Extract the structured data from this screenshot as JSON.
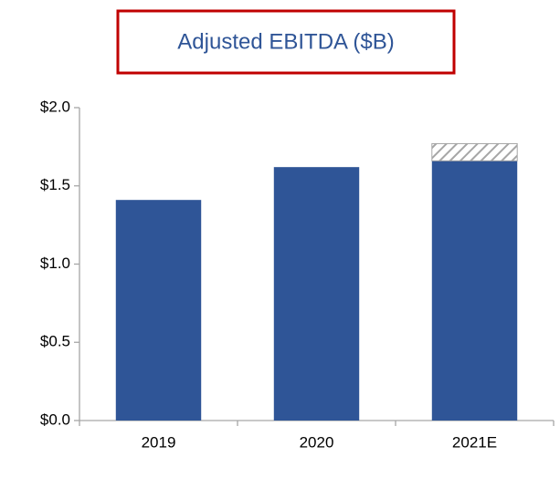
{
  "chart_data": {
    "type": "stacked_bar",
    "title": "Adjusted EBITDA ($B)",
    "categories": [
      "2019",
      "2020",
      "2021E"
    ],
    "series": [
      {
        "color": "#2f5597",
        "values": [
          1.41,
          1.62,
          1.66
        ]
      },
      {
        "color": "#a6a6a6",
        "pattern": "hatch",
        "values": [
          null,
          null,
          0.11
        ]
      }
    ],
    "ylim": [
      0,
      2
    ],
    "yticks": [
      {
        "value": 0,
        "label": "$0.0"
      },
      {
        "value": 0.5,
        "label": "$0.5"
      },
      {
        "value": 1,
        "label": "$1.0"
      },
      {
        "value": 1.5,
        "label": "$1.5"
      },
      {
        "value": 2,
        "label": "$2.0"
      }
    ],
    "grid": false
  }
}
